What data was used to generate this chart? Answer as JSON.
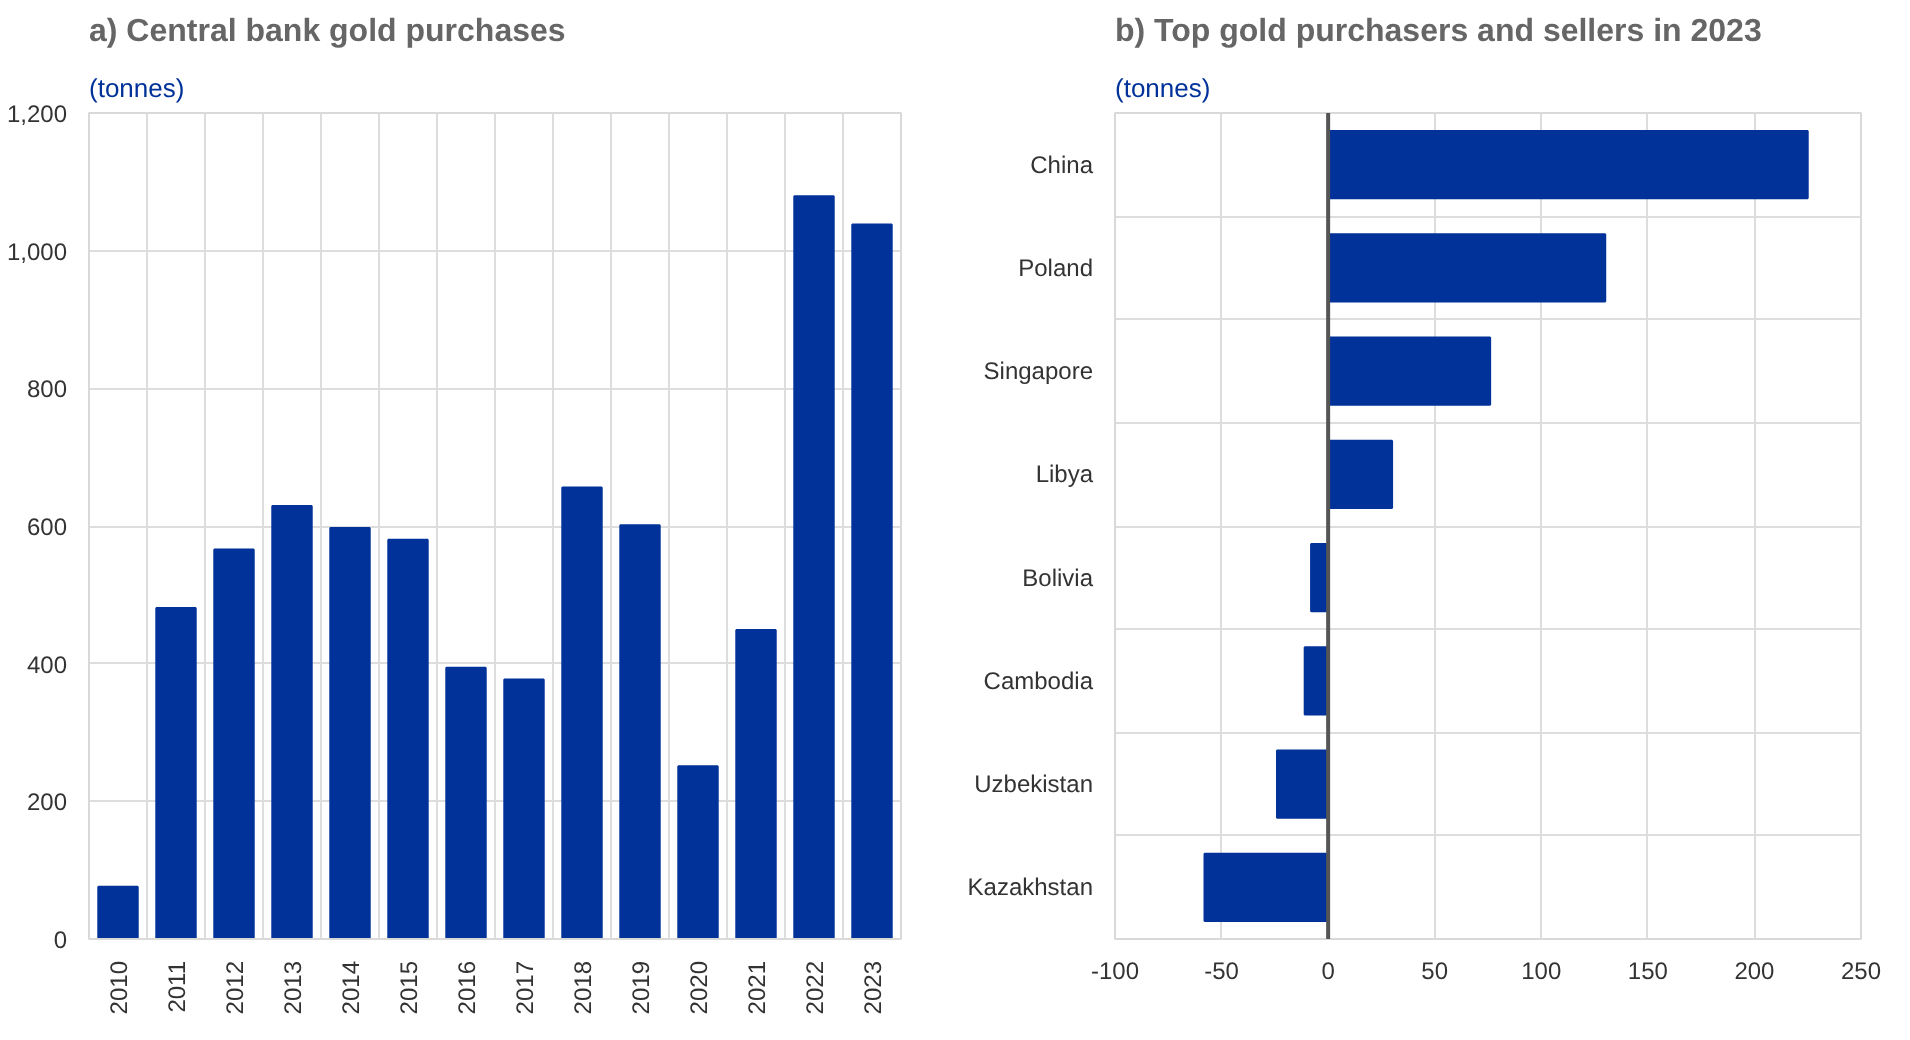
{
  "chart_data": [
    {
      "type": "bar",
      "title": "a) Central bank gold purchases",
      "subtitle": "(tonnes)",
      "categories": [
        "2010",
        "2011",
        "2012",
        "2013",
        "2014",
        "2015",
        "2016",
        "2017",
        "2018",
        "2019",
        "2020",
        "2021",
        "2022",
        "2023"
      ],
      "values": [
        76,
        481,
        566,
        629,
        597,
        580,
        394,
        377,
        656,
        601,
        251,
        449,
        1079,
        1038
      ],
      "color": "#003299",
      "ylim": [
        0,
        1200
      ],
      "yticks": [
        {
          "value": 0,
          "label": "0"
        },
        {
          "value": 200,
          "label": "200"
        },
        {
          "value": 400,
          "label": "400"
        },
        {
          "value": 600,
          "label": "600"
        },
        {
          "value": 800,
          "label": "800"
        },
        {
          "value": 1000,
          "label": "1,000"
        },
        {
          "value": 1200,
          "label": "1,200"
        }
      ],
      "grid": true
    },
    {
      "type": "bar",
      "orientation": "horizontal",
      "title": "b) Top gold purchasers and sellers in 2023",
      "subtitle": "(tonnes)",
      "categories": [
        "China",
        "Poland",
        "Singapore",
        "Libya",
        "Bolivia",
        "Cambodia",
        "Uzbekistan",
        "Kazakhstan"
      ],
      "values": [
        225,
        130,
        76,
        30,
        -8,
        -11,
        -24,
        -58
      ],
      "color": "#003299",
      "xlim": [
        -100,
        250
      ],
      "xticks": [
        -100,
        -50,
        0,
        50,
        100,
        150,
        200,
        250
      ],
      "grid": true
    }
  ]
}
